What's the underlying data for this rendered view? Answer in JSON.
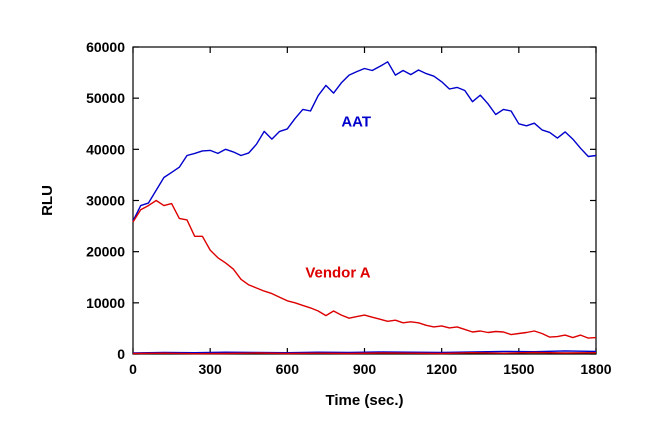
{
  "chart_data": {
    "type": "line",
    "title": "",
    "xlabel": "Time (sec.)",
    "ylabel": "RLU",
    "xlim": [
      0,
      1800
    ],
    "ylim": [
      0,
      60000
    ],
    "xticks": [
      0,
      300,
      600,
      900,
      1200,
      1500,
      1800
    ],
    "yticks": [
      0,
      10000,
      20000,
      30000,
      40000,
      50000,
      60000
    ],
    "xtick_labels": [
      "0",
      "300",
      "600",
      "900",
      "1200",
      "1500",
      "1800"
    ],
    "ytick_labels": [
      "0",
      "10000",
      "20000",
      "30000",
      "40000",
      "50000",
      "60000"
    ],
    "grid": false,
    "legend": "none (series labeled inline)",
    "series": [
      {
        "name": "AAT",
        "color": "#0000cc",
        "x": [
          0,
          30,
          60,
          90,
          120,
          150,
          180,
          210,
          240,
          270,
          300,
          330,
          360,
          390,
          420,
          450,
          480,
          510,
          540,
          570,
          600,
          630,
          660,
          690,
          720,
          750,
          780,
          810,
          840,
          870,
          900,
          930,
          960,
          990,
          1020,
          1050,
          1080,
          1110,
          1140,
          1170,
          1200,
          1230,
          1260,
          1290,
          1320,
          1350,
          1380,
          1410,
          1440,
          1470,
          1500,
          1530,
          1560,
          1590,
          1620,
          1650,
          1680,
          1710,
          1740,
          1770,
          1800
        ],
        "y": [
          26000,
          29000,
          29500,
          32000,
          34500,
          35500,
          36500,
          38800,
          39200,
          39700,
          39800,
          39200,
          40000,
          39500,
          38800,
          39300,
          41000,
          43500,
          42000,
          43500,
          44000,
          46000,
          47800,
          47500,
          50500,
          52500,
          51000,
          53000,
          54500,
          55200,
          55800,
          55400,
          56200,
          57100,
          54500,
          55400,
          54600,
          55500,
          54800,
          54300,
          53200,
          51800,
          52100,
          51500,
          49300,
          50600,
          48900,
          46800,
          47800,
          47500,
          45000,
          44600,
          45100,
          43800,
          43300,
          42200,
          43400,
          42000,
          40200,
          38600,
          38800
        ]
      },
      {
        "name": "Vendor A",
        "color": "#dd0000",
        "x": [
          0,
          30,
          60,
          90,
          120,
          150,
          180,
          210,
          240,
          270,
          300,
          330,
          360,
          390,
          420,
          450,
          480,
          510,
          540,
          570,
          600,
          630,
          660,
          690,
          720,
          750,
          780,
          810,
          840,
          870,
          900,
          930,
          960,
          990,
          1020,
          1050,
          1080,
          1110,
          1140,
          1170,
          1200,
          1230,
          1260,
          1290,
          1320,
          1350,
          1380,
          1410,
          1440,
          1470,
          1500,
          1530,
          1560,
          1590,
          1620,
          1650,
          1680,
          1710,
          1740,
          1770,
          1800
        ],
        "y": [
          25800,
          28200,
          29000,
          30000,
          29000,
          29400,
          26500,
          26200,
          23000,
          23000,
          20300,
          18800,
          17800,
          16600,
          14600,
          13500,
          12900,
          12300,
          11800,
          11100,
          10400,
          10000,
          9500,
          9000,
          8400,
          7500,
          8400,
          7600,
          7000,
          7300,
          7600,
          7200,
          6800,
          6400,
          6600,
          6100,
          6300,
          6100,
          5600,
          5300,
          5500,
          5100,
          5300,
          4800,
          4300,
          4500,
          4200,
          4400,
          4300,
          3800,
          4000,
          4200,
          4500,
          4000,
          3300,
          3400,
          3700,
          3200,
          3700,
          3100,
          3200
        ]
      },
      {
        "name": "",
        "color": "#0000cc",
        "x": [
          0,
          120,
          240,
          360,
          480,
          600,
          720,
          840,
          960,
          1080,
          1200,
          1320,
          1440,
          1560,
          1680,
          1800
        ],
        "y": [
          200,
          300,
          250,
          350,
          300,
          250,
          350,
          300,
          400,
          350,
          300,
          400,
          500,
          450,
          600,
          500
        ]
      },
      {
        "name": "",
        "color": "#dd0000",
        "x": [
          0,
          120,
          240,
          360,
          480,
          600,
          720,
          840,
          960,
          1080,
          1200,
          1320,
          1440,
          1560,
          1680,
          1800
        ],
        "y": [
          100,
          150,
          50,
          100,
          200,
          100,
          150,
          100,
          200,
          150,
          100,
          250,
          150,
          300,
          200,
          250
        ]
      }
    ],
    "annotations": [
      {
        "text": "AAT",
        "color": "#0000cc",
        "x": 810,
        "y": 44500
      },
      {
        "text": "Vendor A",
        "color": "#dd0000",
        "x": 670,
        "y": 15000
      }
    ]
  }
}
